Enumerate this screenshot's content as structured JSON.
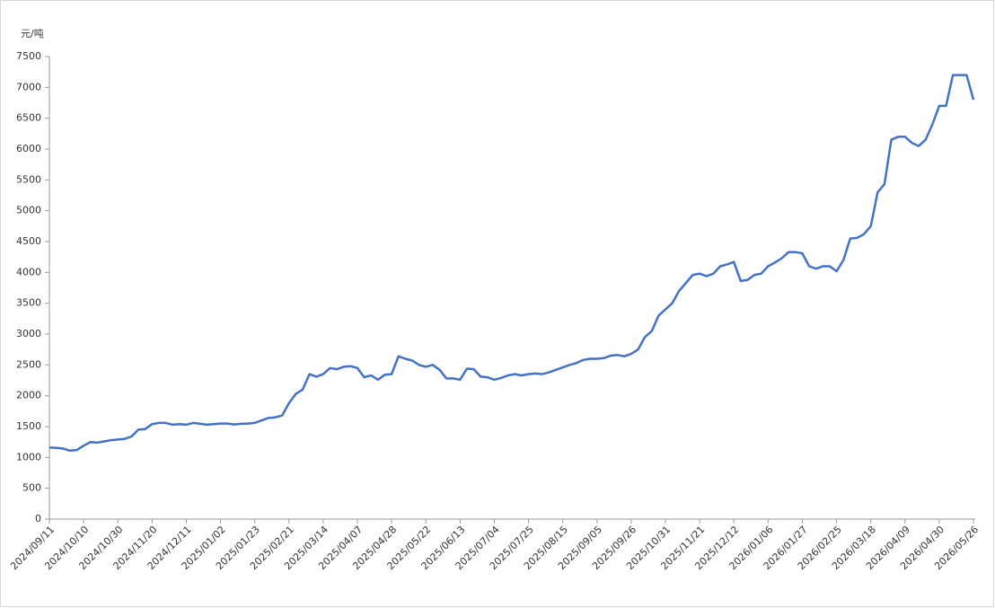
{
  "chart_data": {
    "type": "line",
    "y_label": "元/吨",
    "color": "#4472c4",
    "categories": [
      "2024/09/11",
      null,
      null,
      null,
      null,
      "2024/10/10",
      null,
      null,
      null,
      null,
      "2024/10/30",
      null,
      null,
      null,
      null,
      "2024/11/20",
      null,
      null,
      null,
      null,
      "2024/12/11",
      null,
      null,
      null,
      null,
      "2025/01/02",
      null,
      null,
      null,
      null,
      "2025/01/23",
      null,
      null,
      null,
      null,
      "2025/02/21",
      null,
      null,
      null,
      null,
      "2025/03/14",
      null,
      null,
      null,
      null,
      "2025/04/07",
      null,
      null,
      null,
      null,
      "2025/04/28",
      null,
      null,
      null,
      null,
      "2025/05/22",
      null,
      null,
      null,
      null,
      "2025/06/13",
      null,
      null,
      null,
      null,
      "2025/07/04",
      null,
      null,
      null,
      null,
      "2025/07/25",
      null,
      null,
      null,
      null,
      "2025/08/15",
      null,
      null,
      null,
      null,
      "2025/09/05",
      null,
      null,
      null,
      null,
      "2025/09/26",
      null,
      null,
      null,
      null,
      "2025/10/31",
      null,
      null,
      null,
      null,
      "2025/11/21",
      null,
      null,
      null,
      null,
      "2025/12/12",
      null,
      null,
      null,
      null,
      "2026/01/06",
      null,
      null,
      null,
      null,
      "2026/01/27",
      null,
      null,
      null,
      null,
      "2026/02/25",
      null,
      null,
      null,
      null,
      "2026/03/18",
      null,
      null,
      null,
      null,
      "2026/04/09",
      null,
      null,
      null,
      null,
      "2026/04/30",
      null,
      null,
      null,
      null,
      "2026/05/26"
    ],
    "values": [
      1160,
      1155,
      1145,
      1110,
      1120,
      1190,
      1250,
      1240,
      1260,
      1280,
      1290,
      1300,
      1340,
      1450,
      1460,
      1540,
      1560,
      1560,
      1530,
      1540,
      1530,
      1560,
      1545,
      1530,
      1540,
      1550,
      1550,
      1535,
      1545,
      1550,
      1560,
      1600,
      1640,
      1650,
      1680,
      1880,
      2030,
      2100,
      2350,
      2310,
      2350,
      2450,
      2430,
      2470,
      2480,
      2450,
      2300,
      2330,
      2260,
      2340,
      2350,
      2640,
      2600,
      2570,
      2500,
      2470,
      2500,
      2420,
      2280,
      2280,
      2260,
      2440,
      2430,
      2310,
      2300,
      2260,
      2290,
      2330,
      2350,
      2330,
      2350,
      2360,
      2350,
      2380,
      2420,
      2460,
      2500,
      2530,
      2580,
      2600,
      2600,
      2610,
      2650,
      2660,
      2640,
      2680,
      2750,
      2950,
      3050,
      3300,
      3400,
      3500,
      3700,
      3830,
      3960,
      3980,
      3940,
      3980,
      4100,
      4130,
      4170,
      3860,
      3880,
      3960,
      3980,
      4100,
      4160,
      4230,
      4330,
      4330,
      4310,
      4100,
      4060,
      4100,
      4100,
      4020,
      4200,
      4550,
      4560,
      4620,
      4750,
      5300,
      5430,
      6150,
      6200,
      6200,
      6100,
      6050,
      6150,
      6400,
      6700,
      6700,
      7200,
      7200,
      7200,
      6800
    ],
    "ylim": [
      0,
      7500
    ],
    "yticks": [
      0,
      500,
      1000,
      1500,
      2000,
      2500,
      3000,
      3500,
      4000,
      4500,
      5000,
      5500,
      6000,
      6500,
      7000,
      7500
    ],
    "grid": false
  }
}
